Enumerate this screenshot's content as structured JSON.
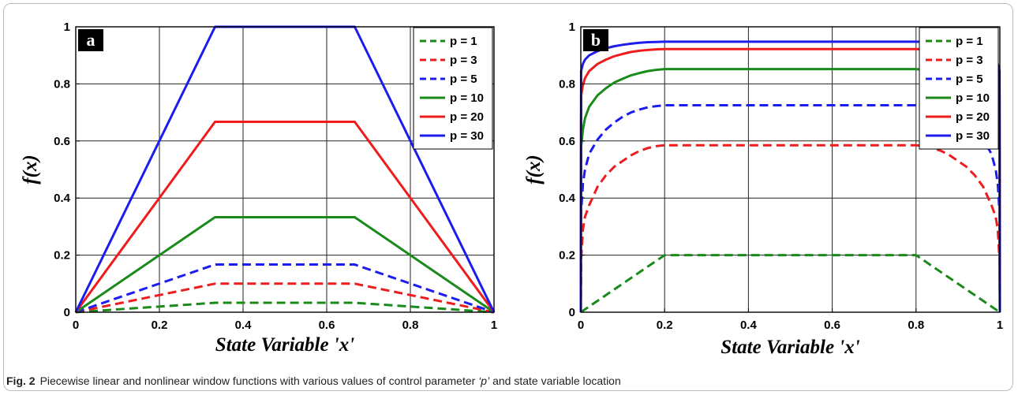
{
  "caption": {
    "label": "Fig. 2",
    "text_before": "Piecewise linear and nonlinear window functions with various values of control parameter ",
    "param": "‘p’",
    "text_after": " and state variable location"
  },
  "chart_data": [
    {
      "type": "line",
      "panel_label": "a",
      "title": "",
      "xlabel": "State Variable  'x'",
      "ylabel": "f(x)",
      "xlim": [
        0,
        1
      ],
      "ylim": [
        0,
        1
      ],
      "xticks": [
        0,
        0.2,
        0.4,
        0.6,
        0.8,
        1
      ],
      "xtick_labels": [
        "0",
        "0.2",
        "0.4",
        "0.6",
        "0.8",
        "1"
      ],
      "yticks": [
        0,
        0.2,
        0.4,
        0.6,
        0.8,
        1
      ],
      "ytick_labels": [
        "0",
        "0.2",
        "0.4",
        "0.6",
        "0.8",
        "1"
      ],
      "grid": true,
      "legend_position": "top-right",
      "series": [
        {
          "name": "p = 1",
          "color": "#1a8a1a",
          "dashed": true,
          "x": [
            0,
            0.333,
            0.667,
            1
          ],
          "y": [
            0,
            0.033,
            0.033,
            0
          ]
        },
        {
          "name": "p = 3",
          "color": "#ee1c1c",
          "dashed": true,
          "x": [
            0,
            0.333,
            0.667,
            1
          ],
          "y": [
            0,
            0.1,
            0.1,
            0
          ]
        },
        {
          "name": "p = 5",
          "color": "#1c1cee",
          "dashed": true,
          "x": [
            0,
            0.333,
            0.667,
            1
          ],
          "y": [
            0,
            0.167,
            0.167,
            0
          ]
        },
        {
          "name": "p = 10",
          "color": "#1a8a1a",
          "dashed": false,
          "x": [
            0,
            0.333,
            0.667,
            1
          ],
          "y": [
            0,
            0.333,
            0.333,
            0
          ]
        },
        {
          "name": "p = 20",
          "color": "#ee1c1c",
          "dashed": false,
          "x": [
            0,
            0.333,
            0.667,
            1
          ],
          "y": [
            0,
            0.667,
            0.667,
            0
          ]
        },
        {
          "name": "p = 30",
          "color": "#1c1cee",
          "dashed": false,
          "x": [
            0,
            0.333,
            0.667,
            1
          ],
          "y": [
            0,
            1,
            1,
            0
          ]
        }
      ]
    },
    {
      "type": "line",
      "panel_label": "b",
      "title": "",
      "xlabel": "State Variable  'x'",
      "ylabel": "f(x)",
      "xlim": [
        0,
        1
      ],
      "ylim": [
        0,
        1
      ],
      "xticks": [
        0,
        0.2,
        0.4,
        0.6,
        0.8,
        1
      ],
      "xtick_labels": [
        "0",
        "0.2",
        "0.4",
        "0.6",
        "0.8",
        "1"
      ],
      "yticks": [
        0,
        0.2,
        0.4,
        0.6,
        0.8,
        1
      ],
      "ytick_labels": [
        "0",
        "0.2",
        "0.4",
        "0.6",
        "0.8",
        "1"
      ],
      "grid": true,
      "legend_position": "top-right",
      "series": [
        {
          "name": "p = 1",
          "color": "#1a8a1a",
          "dashed": true,
          "x": [
            0,
            0.2,
            0.8,
            1
          ],
          "y": [
            0,
            0.2,
            0.2,
            0
          ]
        },
        {
          "name": "p = 3",
          "color": "#ee1c1c",
          "dashed": true,
          "x": [
            0,
            0.0008,
            0.005,
            0.01,
            0.02,
            0.04,
            0.06,
            0.08,
            0.1,
            0.12,
            0.14,
            0.16,
            0.18,
            0.2,
            0.8,
            0.82,
            0.84,
            0.86,
            0.88,
            0.9,
            0.92,
            0.94,
            0.96,
            0.98,
            0.99,
            0.995,
            0.9992,
            1
          ],
          "y": [
            0,
            0.185,
            0.29,
            0.335,
            0.375,
            0.44,
            0.48,
            0.51,
            0.53,
            0.55,
            0.565,
            0.575,
            0.582,
            0.585,
            0.585,
            0.582,
            0.575,
            0.565,
            0.55,
            0.53,
            0.51,
            0.48,
            0.44,
            0.375,
            0.335,
            0.29,
            0.185,
            0
          ]
        },
        {
          "name": "p = 5",
          "color": "#1c1cee",
          "dashed": true,
          "x": [
            0,
            0.0008,
            0.005,
            0.01,
            0.02,
            0.04,
            0.06,
            0.08,
            0.1,
            0.12,
            0.14,
            0.16,
            0.18,
            0.2,
            0.8,
            0.82,
            0.84,
            0.86,
            0.88,
            0.9,
            0.92,
            0.94,
            0.96,
            0.98,
            0.99,
            0.995,
            0.9992,
            1
          ],
          "y": [
            0,
            0.35,
            0.45,
            0.5,
            0.555,
            0.605,
            0.64,
            0.665,
            0.685,
            0.7,
            0.71,
            0.718,
            0.722,
            0.725,
            0.725,
            0.722,
            0.718,
            0.71,
            0.7,
            0.685,
            0.665,
            0.64,
            0.605,
            0.555,
            0.5,
            0.45,
            0.35,
            0
          ]
        },
        {
          "name": "p = 10",
          "color": "#1a8a1a",
          "dashed": false,
          "x": [
            0,
            0.0008,
            0.005,
            0.01,
            0.02,
            0.04,
            0.06,
            0.08,
            0.1,
            0.12,
            0.14,
            0.16,
            0.18,
            0.2,
            0.8,
            0.82,
            0.84,
            0.86,
            0.88,
            0.9,
            0.92,
            0.94,
            0.96,
            0.98,
            0.99,
            0.995,
            0.9992,
            1
          ],
          "y": [
            0,
            0.58,
            0.64,
            0.68,
            0.72,
            0.76,
            0.785,
            0.805,
            0.818,
            0.83,
            0.838,
            0.845,
            0.849,
            0.852,
            0.852,
            0.849,
            0.845,
            0.838,
            0.83,
            0.818,
            0.805,
            0.785,
            0.76,
            0.72,
            0.68,
            0.64,
            0.58,
            0
          ]
        },
        {
          "name": "p = 20",
          "color": "#ee1c1c",
          "dashed": false,
          "x": [
            0,
            0.0008,
            0.005,
            0.01,
            0.02,
            0.04,
            0.06,
            0.08,
            0.1,
            0.12,
            0.14,
            0.16,
            0.18,
            0.2,
            0.8,
            0.82,
            0.84,
            0.86,
            0.88,
            0.9,
            0.92,
            0.94,
            0.96,
            0.98,
            0.99,
            0.995,
            0.9992,
            1
          ],
          "y": [
            0,
            0.76,
            0.795,
            0.82,
            0.845,
            0.87,
            0.885,
            0.897,
            0.905,
            0.912,
            0.916,
            0.919,
            0.921,
            0.922,
            0.922,
            0.921,
            0.919,
            0.916,
            0.912,
            0.905,
            0.897,
            0.885,
            0.87,
            0.845,
            0.82,
            0.795,
            0.76,
            0
          ]
        },
        {
          "name": "p = 30",
          "color": "#1c1cee",
          "dashed": false,
          "x": [
            0,
            0.0008,
            0.005,
            0.01,
            0.02,
            0.04,
            0.06,
            0.08,
            0.1,
            0.12,
            0.14,
            0.16,
            0.18,
            0.2,
            0.8,
            0.82,
            0.84,
            0.86,
            0.88,
            0.9,
            0.92,
            0.94,
            0.96,
            0.98,
            0.99,
            0.995,
            0.9992,
            1
          ],
          "y": [
            0,
            0.845,
            0.87,
            0.885,
            0.9,
            0.915,
            0.925,
            0.932,
            0.937,
            0.941,
            0.944,
            0.946,
            0.947,
            0.948,
            0.948,
            0.947,
            0.946,
            0.944,
            0.941,
            0.937,
            0.932,
            0.925,
            0.915,
            0.9,
            0.885,
            0.87,
            0.845,
            0
          ]
        }
      ]
    }
  ]
}
